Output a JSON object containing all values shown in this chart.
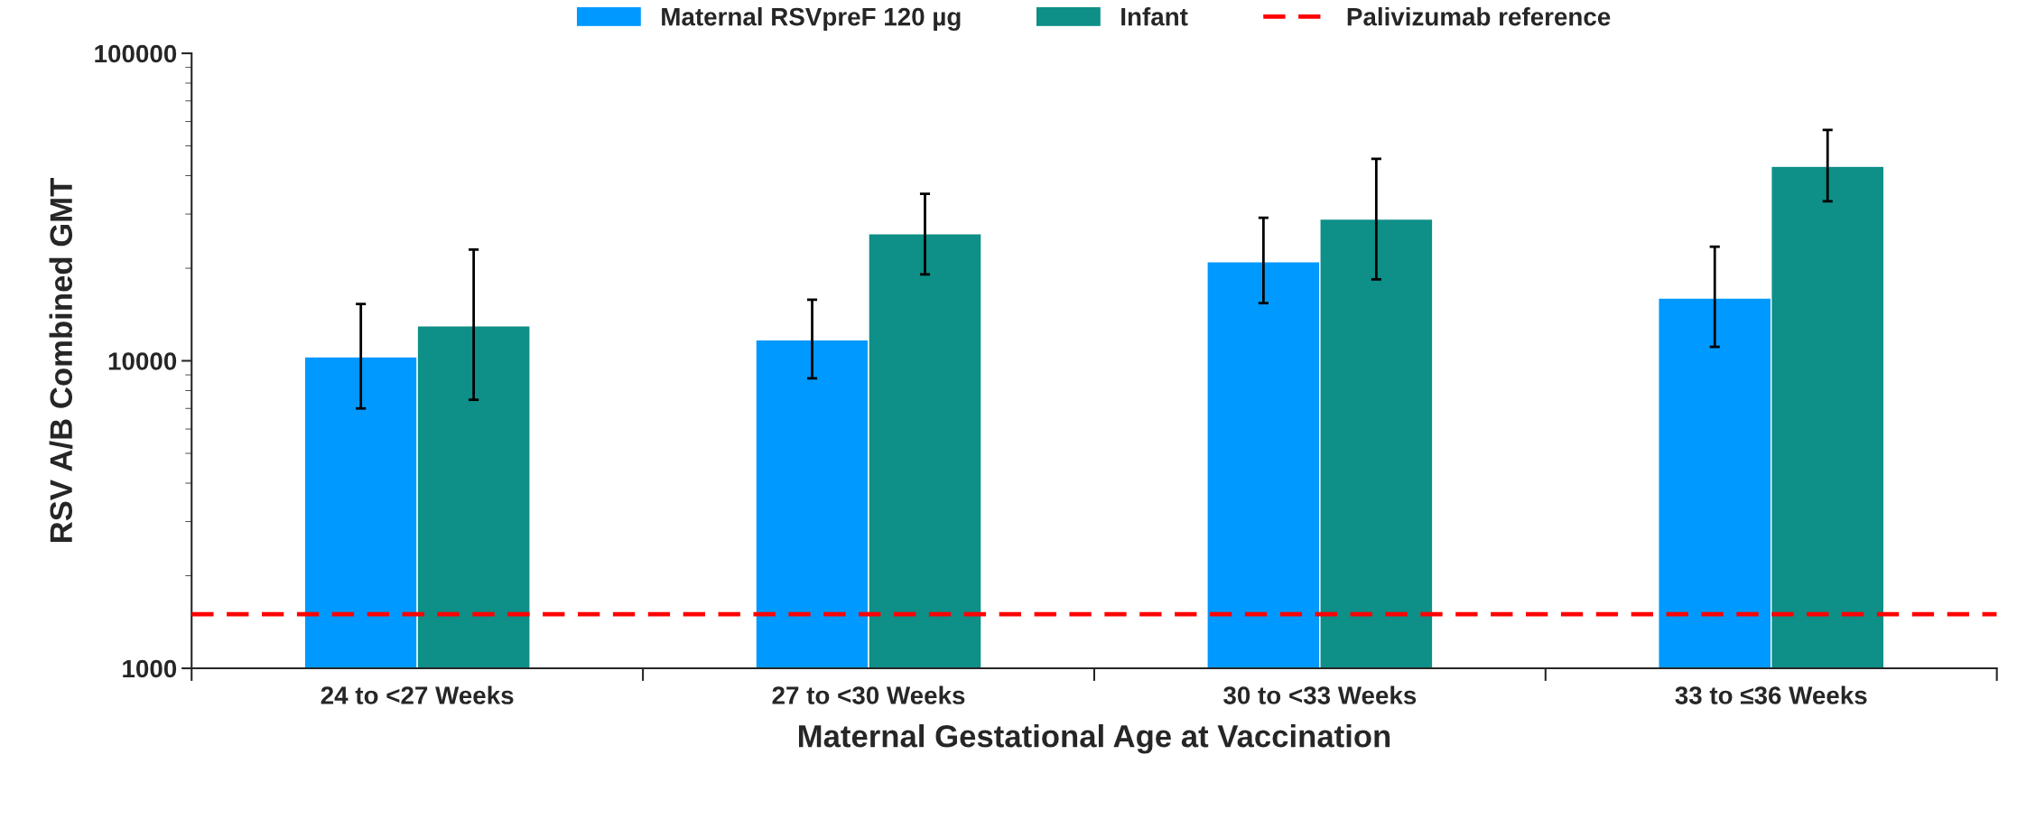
{
  "chart_data": {
    "type": "bar",
    "xlabel": "Maternal Gestational Age at Vaccination",
    "ylabel": "RSV A/B Combined GMT",
    "categories": [
      "24 to <27 Weeks",
      "27 to <30 Weeks",
      "30 to <33 Weeks",
      "33 to ≤36 Weeks"
    ],
    "series": [
      {
        "name": "Maternal RSVpreF 120 µg",
        "color": "#0099ff",
        "values": [
          10300,
          11700,
          21000,
          16000
        ],
        "errors": [
          [
            7000,
            15300
          ],
          [
            8770,
            15800
          ],
          [
            15400,
            29200
          ],
          [
            11100,
            23500
          ]
        ]
      },
      {
        "name": "Infant",
        "color": "#0e8f87",
        "values": [
          13000,
          25900,
          28900,
          42900
        ],
        "errors": [
          [
            7470,
            23000
          ],
          [
            19100,
            34900
          ],
          [
            18400,
            45400
          ],
          [
            33000,
            56300
          ]
        ]
      }
    ],
    "ref_lines": [
      {
        "axis": "y",
        "value": 1500,
        "label": "Palivizumab reference",
        "color": "#ff0000",
        "line_style": "dashed"
      }
    ],
    "log": "y",
    "ylim": [
      1000,
      100000
    ],
    "yticks": [
      1000,
      10000,
      100000
    ],
    "grid": false,
    "legend": "top"
  }
}
